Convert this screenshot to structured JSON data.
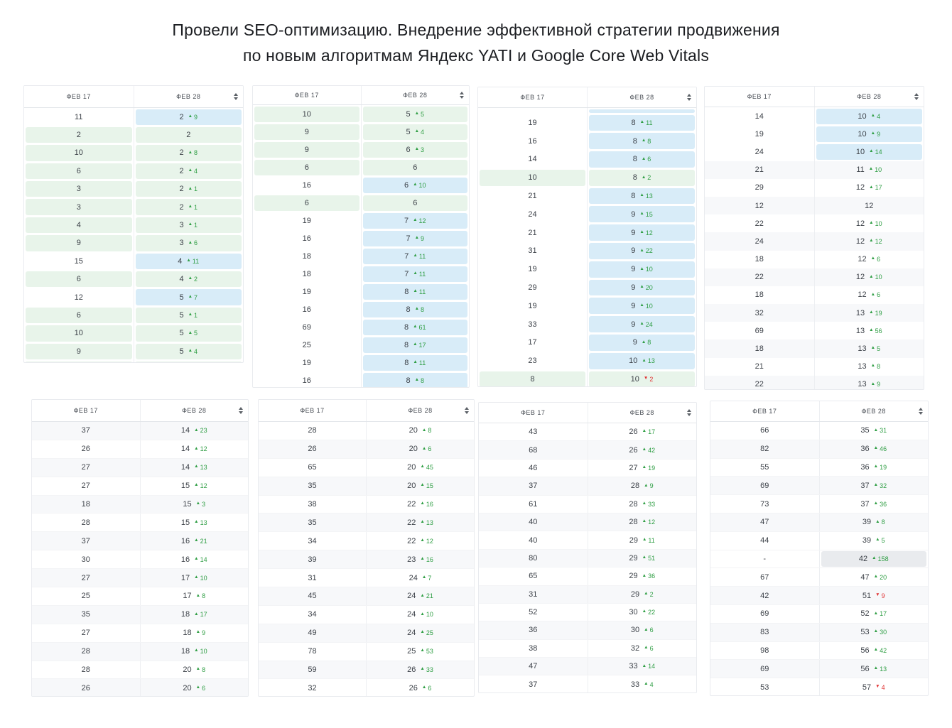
{
  "title": {
    "line1": "Провели SEO-оптимизацию. Внедрение эффективной стратегии продвижения",
    "line2": "по новым алгоритмам Яндекс YATI и Google Core Web Vitals"
  },
  "header": {
    "col_before": "ФЕВ 17",
    "col_after": "ФЕВ 28",
    "sort_icon": "sort-arrows-icon"
  },
  "colors": {
    "highlight_green": "#e8f4ea",
    "highlight_blue": "#d8ecf8",
    "highlight_gray": "#e9ebee",
    "row_stripe": "#f7f8fa",
    "delta_up": "#2f9e44",
    "delta_down": "#e03131"
  },
  "tables": [
    {
      "id": "t1",
      "rows": [
        {
          "b": "11",
          "a": "2",
          "d": 9,
          "hl": "blue"
        },
        {
          "b": "2",
          "a": "2",
          "hl": "green"
        },
        {
          "b": "10",
          "a": "2",
          "d": 8,
          "hl": "green"
        },
        {
          "b": "6",
          "a": "2",
          "d": 4,
          "hl": "green"
        },
        {
          "b": "3",
          "a": "2",
          "d": 1,
          "hl": "green"
        },
        {
          "b": "3",
          "a": "2",
          "d": 1,
          "hl": "green"
        },
        {
          "b": "4",
          "a": "3",
          "d": 1,
          "hl": "green"
        },
        {
          "b": "9",
          "a": "3",
          "d": 6,
          "hl": "green"
        },
        {
          "b": "15",
          "a": "4",
          "d": 11,
          "hl": "blue"
        },
        {
          "b": "6",
          "a": "4",
          "d": 2,
          "hl": "green"
        },
        {
          "b": "12",
          "a": "5",
          "d": 7,
          "hl": "blue"
        },
        {
          "b": "6",
          "a": "5",
          "d": 1,
          "hl": "green"
        },
        {
          "b": "10",
          "a": "5",
          "d": 5,
          "hl": "green"
        },
        {
          "b": "9",
          "a": "5",
          "d": 4,
          "hl": "green"
        },
        {
          "b": "",
          "a": "",
          "hl": "green",
          "partial": "bottom"
        }
      ]
    },
    {
      "id": "t2",
      "rows": [
        {
          "b": "10",
          "a": "5",
          "d": 5,
          "hl": "green"
        },
        {
          "b": "9",
          "a": "5",
          "d": 4,
          "hl": "green"
        },
        {
          "b": "9",
          "a": "6",
          "d": 3,
          "hl": "green"
        },
        {
          "b": "6",
          "a": "6",
          "hl": "green"
        },
        {
          "b": "16",
          "a": "6",
          "d": 10,
          "hl": "blue"
        },
        {
          "b": "6",
          "a": "6",
          "hl": "green"
        },
        {
          "b": "19",
          "a": "7",
          "d": 12,
          "hl": "blue"
        },
        {
          "b": "16",
          "a": "7",
          "d": 9,
          "hl": "blue"
        },
        {
          "b": "18",
          "a": "7",
          "d": 11,
          "hl": "blue"
        },
        {
          "b": "18",
          "a": "7",
          "d": 11,
          "hl": "blue"
        },
        {
          "b": "19",
          "a": "8",
          "d": 11,
          "hl": "blue"
        },
        {
          "b": "16",
          "a": "8",
          "d": 8,
          "hl": "blue"
        },
        {
          "b": "69",
          "a": "8",
          "d": 61,
          "hl": "blue"
        },
        {
          "b": "25",
          "a": "8",
          "d": 17,
          "hl": "blue"
        },
        {
          "b": "19",
          "a": "8",
          "d": 11,
          "hl": "blue"
        },
        {
          "b": "16",
          "a": "8",
          "d": 8,
          "hl": "blue"
        }
      ]
    },
    {
      "id": "t3",
      "rows": [
        {
          "b": "",
          "a": "",
          "hl": "blue",
          "partial": "top"
        },
        {
          "b": "19",
          "a": "8",
          "d": 11,
          "hl": "blue"
        },
        {
          "b": "16",
          "a": "8",
          "d": 8,
          "hl": "blue"
        },
        {
          "b": "14",
          "a": "8",
          "d": 6,
          "hl": "blue"
        },
        {
          "b": "10",
          "a": "8",
          "d": 2,
          "hl": "green"
        },
        {
          "b": "21",
          "a": "8",
          "d": 13,
          "hl": "blue"
        },
        {
          "b": "24",
          "a": "9",
          "d": 15,
          "hl": "blue"
        },
        {
          "b": "21",
          "a": "9",
          "d": 12,
          "hl": "blue"
        },
        {
          "b": "31",
          "a": "9",
          "d": 22,
          "hl": "blue"
        },
        {
          "b": "19",
          "a": "9",
          "d": 10,
          "hl": "blue"
        },
        {
          "b": "29",
          "a": "9",
          "d": 20,
          "hl": "blue"
        },
        {
          "b": "19",
          "a": "9",
          "d": 10,
          "hl": "blue"
        },
        {
          "b": "33",
          "a": "9",
          "d": 24,
          "hl": "blue"
        },
        {
          "b": "17",
          "a": "9",
          "d": 8,
          "hl": "blue"
        },
        {
          "b": "23",
          "a": "10",
          "d": 13,
          "hl": "blue"
        },
        {
          "b": "8",
          "a": "10",
          "d": 2,
          "dir": "down",
          "hl": "green"
        }
      ]
    },
    {
      "id": "t4",
      "rows": [
        {
          "b": "14",
          "a": "10",
          "d": 4,
          "hl": "blue"
        },
        {
          "b": "19",
          "a": "10",
          "d": 9,
          "hl": "blue"
        },
        {
          "b": "24",
          "a": "10",
          "d": 14,
          "hl": "blue"
        },
        {
          "b": "21",
          "a": "11",
          "d": 10
        },
        {
          "b": "29",
          "a": "12",
          "d": 17
        },
        {
          "b": "12",
          "a": "12"
        },
        {
          "b": "22",
          "a": "12",
          "d": 10
        },
        {
          "b": "24",
          "a": "12",
          "d": 12
        },
        {
          "b": "18",
          "a": "12",
          "d": 6
        },
        {
          "b": "22",
          "a": "12",
          "d": 10
        },
        {
          "b": "18",
          "a": "12",
          "d": 6
        },
        {
          "b": "32",
          "a": "13",
          "d": 19
        },
        {
          "b": "69",
          "a": "13",
          "d": 56
        },
        {
          "b": "18",
          "a": "13",
          "d": 5
        },
        {
          "b": "21",
          "a": "13",
          "d": 8
        },
        {
          "b": "22",
          "a": "13",
          "d": 9
        }
      ]
    },
    {
      "id": "t5",
      "rows": [
        {
          "b": "37",
          "a": "14",
          "d": 23
        },
        {
          "b": "26",
          "a": "14",
          "d": 12
        },
        {
          "b": "27",
          "a": "14",
          "d": 13
        },
        {
          "b": "27",
          "a": "15",
          "d": 12
        },
        {
          "b": "18",
          "a": "15",
          "d": 3
        },
        {
          "b": "28",
          "a": "15",
          "d": 13
        },
        {
          "b": "37",
          "a": "16",
          "d": 21
        },
        {
          "b": "30",
          "a": "16",
          "d": 14
        },
        {
          "b": "27",
          "a": "17",
          "d": 10
        },
        {
          "b": "25",
          "a": "17",
          "d": 8
        },
        {
          "b": "35",
          "a": "18",
          "d": 17
        },
        {
          "b": "27",
          "a": "18",
          "d": 9
        },
        {
          "b": "28",
          "a": "18",
          "d": 10
        },
        {
          "b": "28",
          "a": "20",
          "d": 8
        },
        {
          "b": "26",
          "a": "20",
          "d": 6
        }
      ]
    },
    {
      "id": "t6",
      "rows": [
        {
          "b": "28",
          "a": "20",
          "d": 8
        },
        {
          "b": "26",
          "a": "20",
          "d": 6
        },
        {
          "b": "65",
          "a": "20",
          "d": 45
        },
        {
          "b": "35",
          "a": "20",
          "d": 15
        },
        {
          "b": "38",
          "a": "22",
          "d": 16
        },
        {
          "b": "35",
          "a": "22",
          "d": 13
        },
        {
          "b": "34",
          "a": "22",
          "d": 12
        },
        {
          "b": "39",
          "a": "23",
          "d": 16
        },
        {
          "b": "31",
          "a": "24",
          "d": 7
        },
        {
          "b": "45",
          "a": "24",
          "d": 21
        },
        {
          "b": "34",
          "a": "24",
          "d": 10
        },
        {
          "b": "49",
          "a": "24",
          "d": 25
        },
        {
          "b": "78",
          "a": "25",
          "d": 53
        },
        {
          "b": "59",
          "a": "26",
          "d": 33
        },
        {
          "b": "32",
          "a": "26",
          "d": 6
        }
      ]
    },
    {
      "id": "t7",
      "rows": [
        {
          "b": "43",
          "a": "26",
          "d": 17
        },
        {
          "b": "68",
          "a": "26",
          "d": 42
        },
        {
          "b": "46",
          "a": "27",
          "d": 19
        },
        {
          "b": "37",
          "a": "28",
          "d": 9
        },
        {
          "b": "61",
          "a": "28",
          "d": 33
        },
        {
          "b": "40",
          "a": "28",
          "d": 12
        },
        {
          "b": "40",
          "a": "29",
          "d": 11
        },
        {
          "b": "80",
          "a": "29",
          "d": 51
        },
        {
          "b": "65",
          "a": "29",
          "d": 36
        },
        {
          "b": "31",
          "a": "29",
          "d": 2
        },
        {
          "b": "52",
          "a": "30",
          "d": 22
        },
        {
          "b": "36",
          "a": "30",
          "d": 6
        },
        {
          "b": "38",
          "a": "32",
          "d": 6
        },
        {
          "b": "47",
          "a": "33",
          "d": 14
        },
        {
          "b": "37",
          "a": "33",
          "d": 4
        }
      ]
    },
    {
      "id": "t8",
      "rows": [
        {
          "b": "66",
          "a": "35",
          "d": 31
        },
        {
          "b": "82",
          "a": "36",
          "d": 46
        },
        {
          "b": "55",
          "a": "36",
          "d": 19
        },
        {
          "b": "69",
          "a": "37",
          "d": 32
        },
        {
          "b": "73",
          "a": "37",
          "d": 36
        },
        {
          "b": "47",
          "a": "39",
          "d": 8
        },
        {
          "b": "44",
          "a": "39",
          "d": 5
        },
        {
          "b": "-",
          "a": "42",
          "d": 158,
          "hl": "gray"
        },
        {
          "b": "67",
          "a": "47",
          "d": 20
        },
        {
          "b": "42",
          "a": "51",
          "d": 9,
          "dir": "down"
        },
        {
          "b": "69",
          "a": "52",
          "d": 17
        },
        {
          "b": "83",
          "a": "53",
          "d": 30
        },
        {
          "b": "98",
          "a": "56",
          "d": 42
        },
        {
          "b": "69",
          "a": "56",
          "d": 13
        },
        {
          "b": "53",
          "a": "57",
          "d": 4,
          "dir": "down"
        }
      ]
    }
  ]
}
